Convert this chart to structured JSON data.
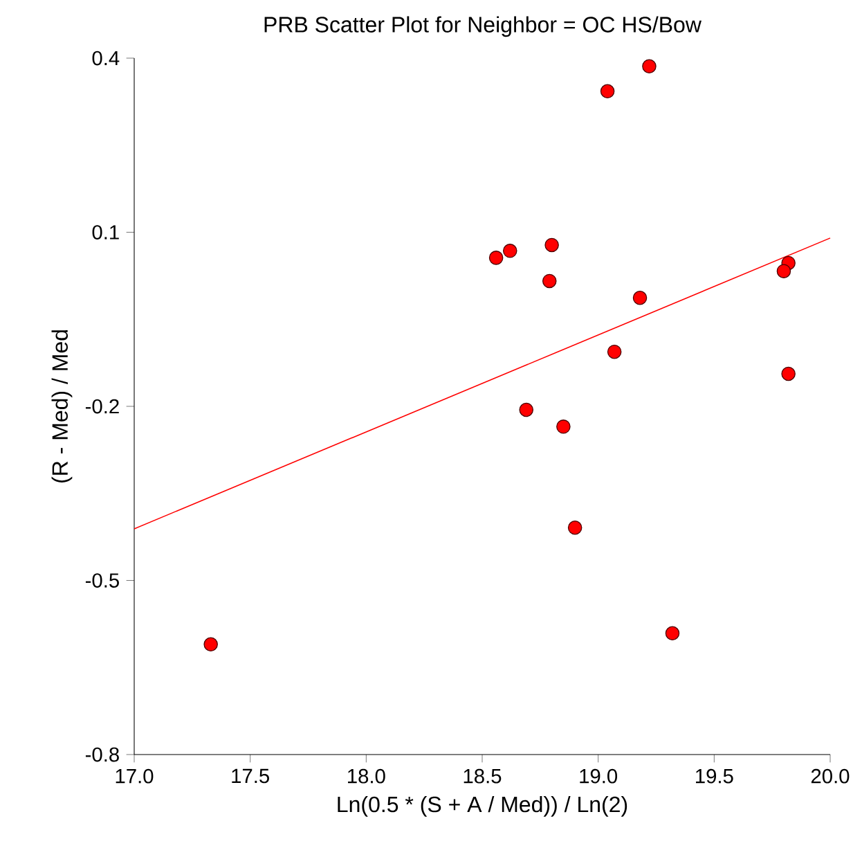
{
  "chart_data": {
    "type": "scatter",
    "title": "PRB Scatter Plot for Neighbor = OC HS/Bow",
    "xlabel": "Ln(0.5 * (S + A / Med)) / Ln(2)",
    "ylabel": "(R - Med) / Med",
    "xlim": [
      17,
      20
    ],
    "ylim": [
      -0.8,
      0.4
    ],
    "xticks": [
      {
        "value": 17,
        "label": "17.0"
      },
      {
        "value": 17.5,
        "label": "17.5"
      },
      {
        "value": 18,
        "label": "18.0"
      },
      {
        "value": 18.5,
        "label": "18.5"
      },
      {
        "value": 19,
        "label": "19.0"
      },
      {
        "value": 19.5,
        "label": "19.5"
      },
      {
        "value": 20,
        "label": "20.0"
      }
    ],
    "yticks": [
      {
        "value": -0.8,
        "label": "-0.8"
      },
      {
        "value": -0.5,
        "label": "-0.5"
      },
      {
        "value": -0.2,
        "label": "-0.2"
      },
      {
        "value": 0.1,
        "label": "0.1"
      },
      {
        "value": 0.4,
        "label": "0.4"
      }
    ],
    "grid": false,
    "marker": "circle",
    "series": [
      {
        "color": "#ff0000",
        "x": [
          17.33,
          18.56,
          18.62,
          18.8,
          18.79,
          18.69,
          18.85,
          18.9,
          19.04,
          19.22,
          19.18,
          19.07,
          19.32,
          19.82,
          19.8,
          19.82
        ],
        "values": [
          -0.61,
          0.056,
          0.068,
          0.078,
          0.016,
          -0.206,
          -0.235,
          -0.409,
          0.343,
          0.386,
          -0.013,
          -0.106,
          -0.591,
          0.047,
          0.033,
          -0.144
        ]
      },
      {
        "type": "line",
        "marker": "none",
        "color": "#ff0000",
        "x": [
          17,
          20
        ],
        "values": [
          -0.411,
          0.09
        ]
      }
    ]
  }
}
